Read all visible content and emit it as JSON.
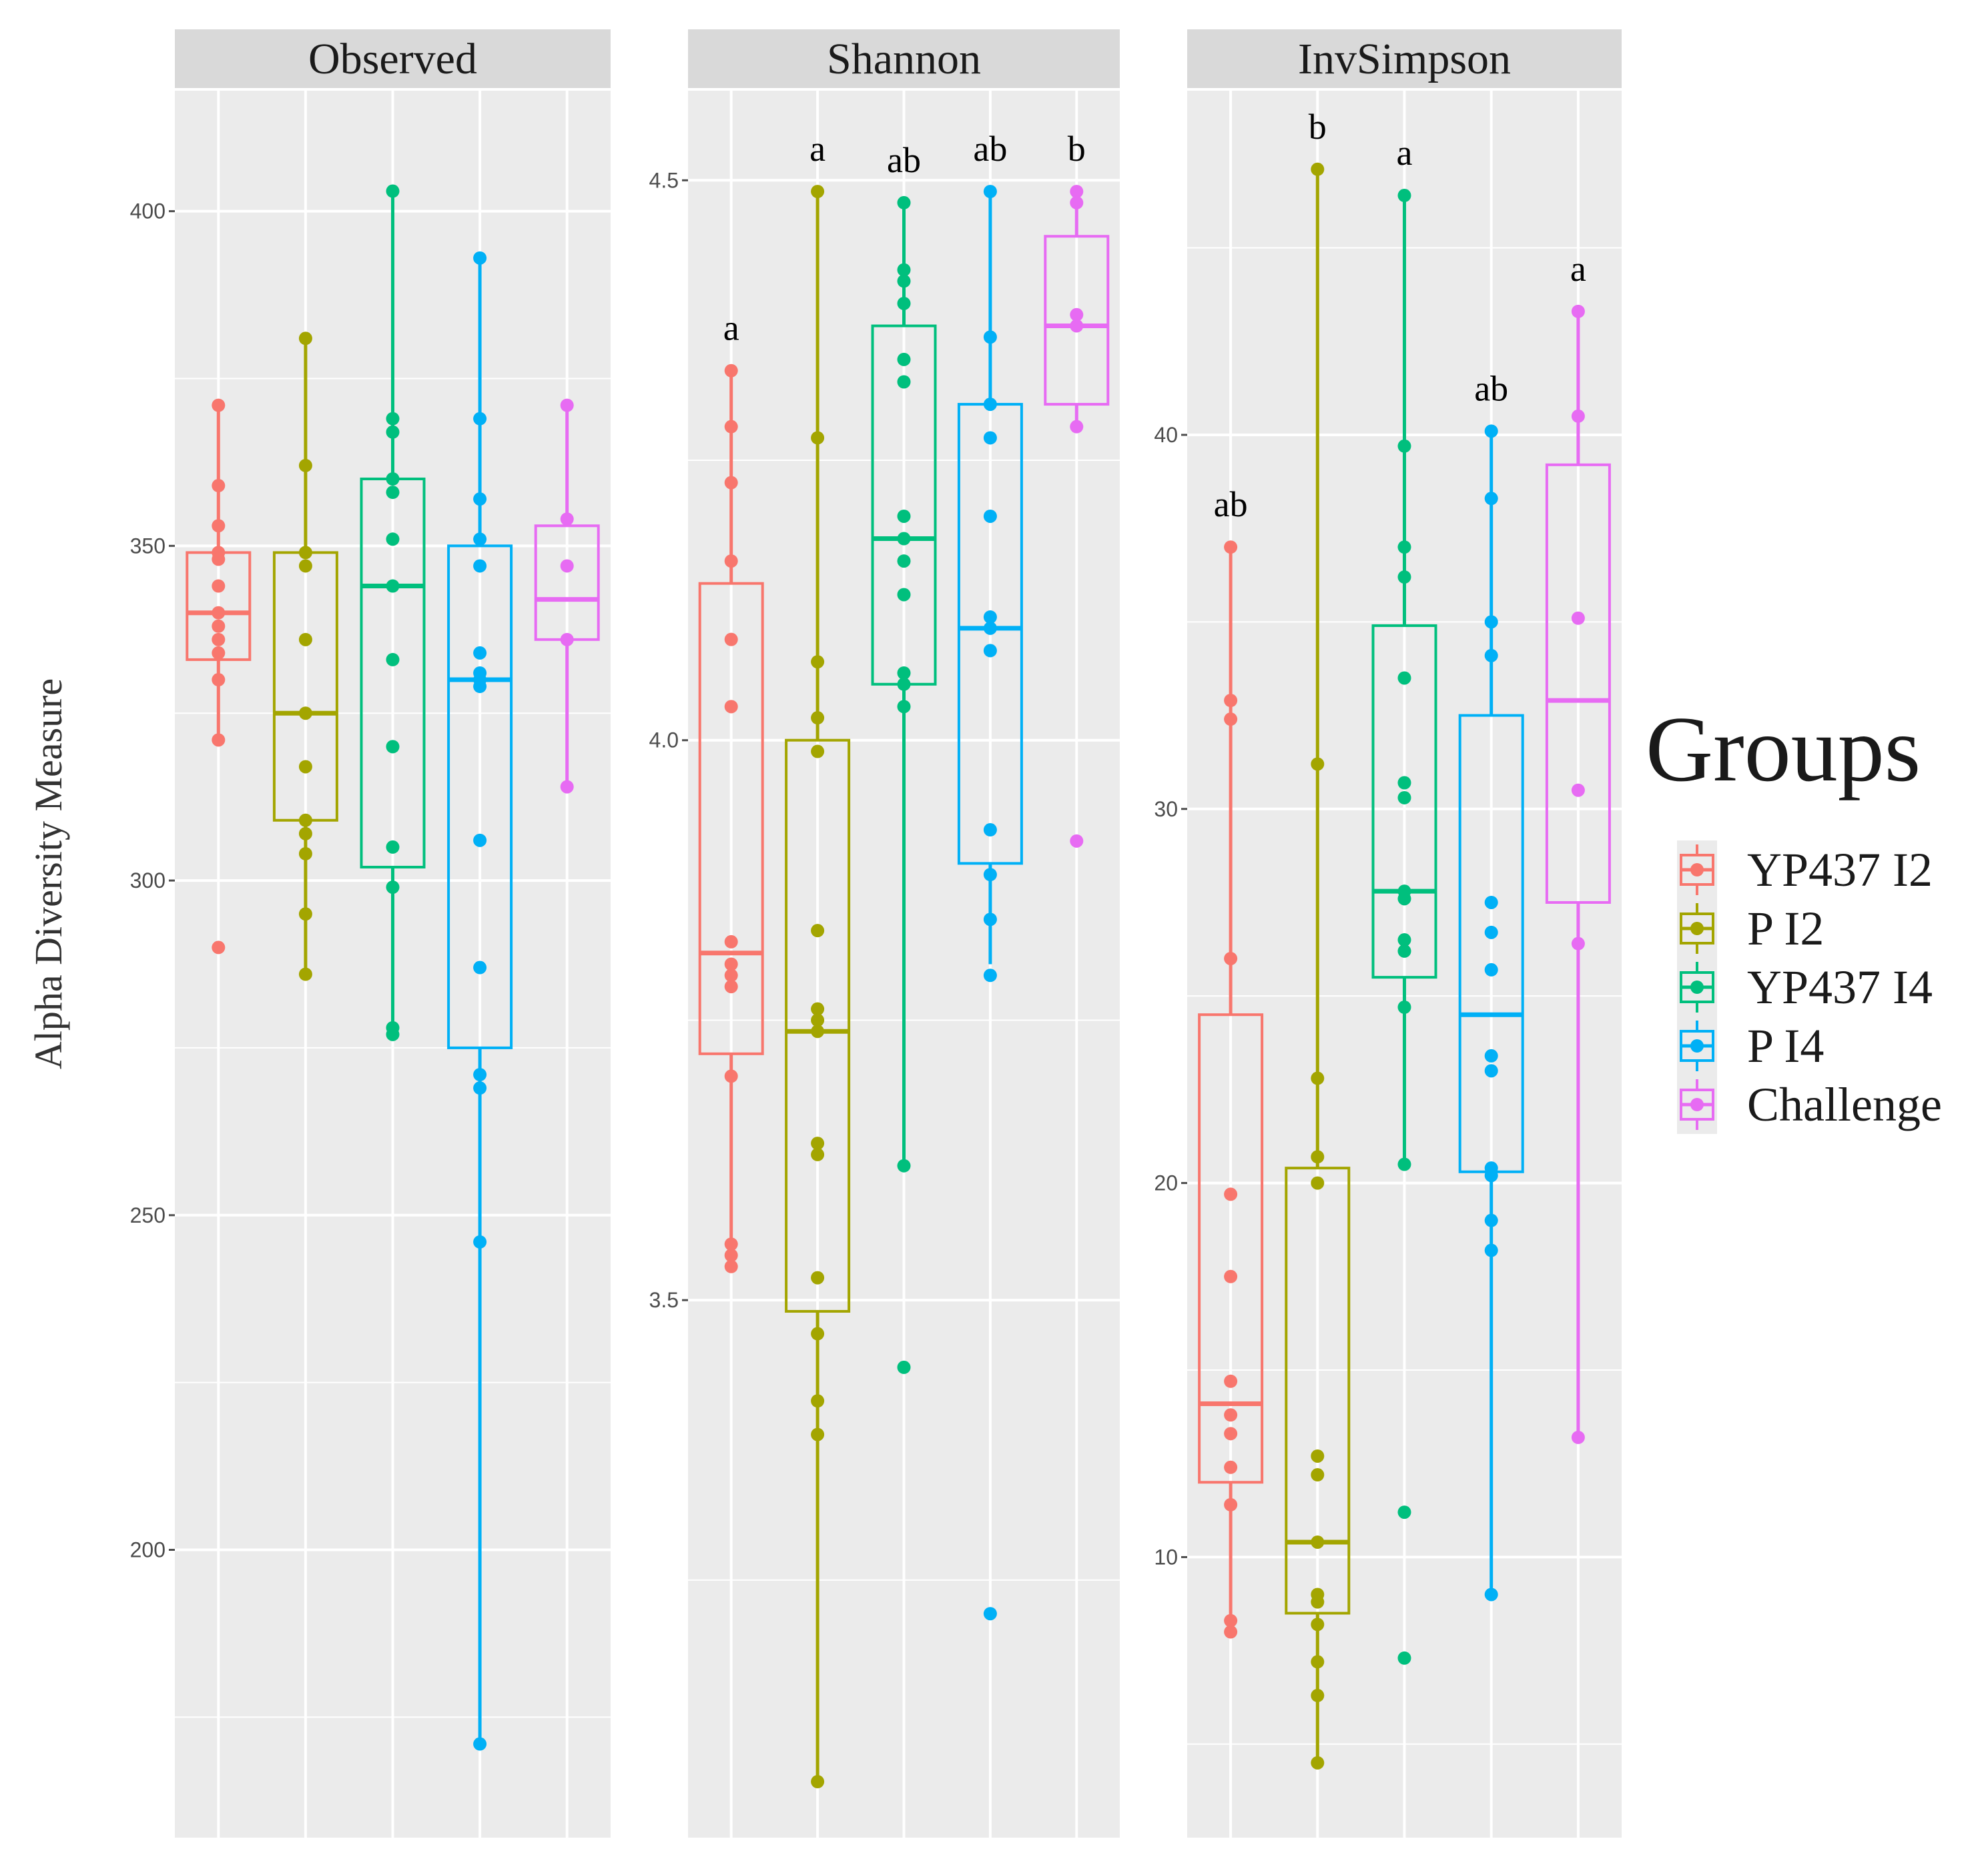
{
  "chart_data": {
    "type": "boxplot",
    "ylabel": "Alpha Diversity Measure",
    "legend": {
      "title": "Groups",
      "position": "right"
    },
    "groups": [
      {
        "name": "YP437 I2",
        "color": "#F8766D"
      },
      {
        "name": "P I2",
        "color": "#A3A500"
      },
      {
        "name": "YP437 I4",
        "color": "#00BF7D"
      },
      {
        "name": "P I4",
        "color": "#00B0F6"
      },
      {
        "name": "Challenge",
        "color": "#E76BF3"
      }
    ],
    "panels": [
      {
        "title": "Observed",
        "ylim": [
          157,
          418
        ],
        "yticks": [
          200,
          250,
          300,
          350,
          400
        ],
        "ytick_labels": [
          "200",
          "250",
          "300",
          "350",
          "400"
        ],
        "boxes": [
          {
            "q1": 333,
            "median": 340,
            "q3": 349,
            "lower": 321,
            "upper": 371
          },
          {
            "q1": 309,
            "median": 325,
            "q3": 349,
            "lower": 286,
            "upper": 381
          },
          {
            "q1": 302,
            "median": 344,
            "q3": 360,
            "lower": 277,
            "upper": 403
          },
          {
            "q1": 275,
            "median": 330,
            "q3": 350,
            "lower": 171,
            "upper": 393
          },
          {
            "q1": 336,
            "median": 342,
            "q3": 353,
            "lower": 314,
            "upper": 371
          }
        ],
        "points": [
          [
            371,
            359,
            353,
            349,
            348,
            344,
            340,
            338,
            336,
            334,
            330,
            321,
            290
          ],
          [
            381,
            362,
            349,
            347,
            336,
            325,
            317,
            309,
            307,
            304,
            295,
            286
          ],
          [
            403,
            369,
            367,
            360,
            358,
            351,
            344,
            333,
            320,
            305,
            299,
            278,
            277
          ],
          [
            393,
            369,
            357,
            351,
            347,
            334,
            331,
            330,
            329,
            306,
            287,
            271,
            269,
            246,
            171
          ],
          [
            371,
            354,
            347,
            336,
            314
          ]
        ],
        "labels": []
      },
      {
        "title": "Shannon",
        "ylim": [
          3.02,
          4.58
        ],
        "yticks": [
          3.5,
          4.0,
          4.5
        ],
        "ytick_labels": [
          "3.5",
          "4.0",
          "4.5"
        ],
        "boxes": [
          {
            "q1": 3.72,
            "median": 3.81,
            "q3": 4.14,
            "lower": 3.53,
            "upper": 4.33
          },
          {
            "q1": 3.49,
            "median": 3.74,
            "q3": 4.0,
            "lower": 3.07,
            "upper": 4.49
          },
          {
            "q1": 4.05,
            "median": 4.18,
            "q3": 4.37,
            "lower": 3.62,
            "upper": 4.48
          },
          {
            "q1": 3.89,
            "median": 4.1,
            "q3": 4.3,
            "lower": 3.8,
            "upper": 4.49
          },
          {
            "q1": 4.3,
            "median": 4.37,
            "q3": 4.45,
            "lower": 4.28,
            "upper": 4.49
          }
        ],
        "points": [
          [
            4.33,
            4.28,
            4.23,
            4.16,
            4.09,
            4.03,
            3.82,
            3.8,
            3.79,
            3.78,
            3.7,
            3.55,
            3.54,
            3.53
          ],
          [
            4.49,
            4.27,
            4.07,
            4.02,
            3.99,
            3.83,
            3.76,
            3.75,
            3.74,
            3.64,
            3.63,
            3.52,
            3.47,
            3.41,
            3.38,
            3.07
          ],
          [
            4.48,
            4.42,
            4.41,
            4.39,
            4.34,
            4.32,
            4.2,
            4.18,
            4.16,
            4.13,
            4.06,
            4.05,
            4.03,
            3.62,
            3.44
          ],
          [
            4.49,
            4.36,
            4.3,
            4.27,
            4.2,
            4.11,
            4.1,
            4.08,
            3.92,
            3.88,
            3.84,
            3.79,
            3.22
          ],
          [
            4.49,
            4.48,
            4.38,
            4.37,
            4.28,
            3.91
          ]
        ],
        "labels": [
          "a",
          "a",
          "ab",
          "ab",
          "b"
        ]
      },
      {
        "title": "InvSimpson",
        "ylim": [
          2.5,
          49.2
        ],
        "yticks": [
          10,
          20,
          30,
          40
        ],
        "ytick_labels": [
          "10",
          "20",
          "30",
          "40"
        ],
        "boxes": [
          {
            "q1": 12.0,
            "median": 14.1,
            "q3": 24.5,
            "lower": 8.0,
            "upper": 37.0
          },
          {
            "q1": 8.5,
            "median": 10.4,
            "q3": 20.4,
            "lower": 4.5,
            "upper": 47.1
          },
          {
            "q1": 25.5,
            "median": 27.8,
            "q3": 34.9,
            "lower": 20.5,
            "upper": 46.4
          },
          {
            "q1": 20.3,
            "median": 24.5,
            "q3": 32.5,
            "lower": 9.0,
            "upper": 40.1
          },
          {
            "q1": 27.5,
            "median": 32.9,
            "q3": 39.2,
            "lower": 13.2,
            "upper": 43.3
          }
        ],
        "points": [
          [
            37.0,
            32.9,
            32.4,
            26.0,
            19.7,
            17.5,
            14.7,
            13.8,
            13.3,
            12.4,
            11.4,
            8.3,
            8.0
          ],
          [
            47.1,
            31.2,
            22.8,
            20.7,
            20.0,
            12.7,
            12.2,
            10.4,
            9.0,
            8.8,
            8.2,
            7.2,
            6.3,
            4.5
          ],
          [
            46.4,
            39.7,
            37.0,
            36.2,
            33.5,
            30.7,
            30.3,
            27.8,
            27.6,
            26.5,
            26.2,
            24.7,
            20.5,
            11.2,
            7.3
          ],
          [
            40.1,
            38.3,
            35.0,
            34.1,
            27.5,
            26.7,
            25.7,
            23.4,
            23.0,
            20.4,
            20.2,
            19.0,
            18.2,
            9.0
          ],
          [
            43.3,
            40.5,
            35.1,
            30.5,
            26.4,
            13.2
          ]
        ],
        "labels": [
          "ab",
          "b",
          "a",
          "ab",
          "a"
        ]
      }
    ]
  }
}
